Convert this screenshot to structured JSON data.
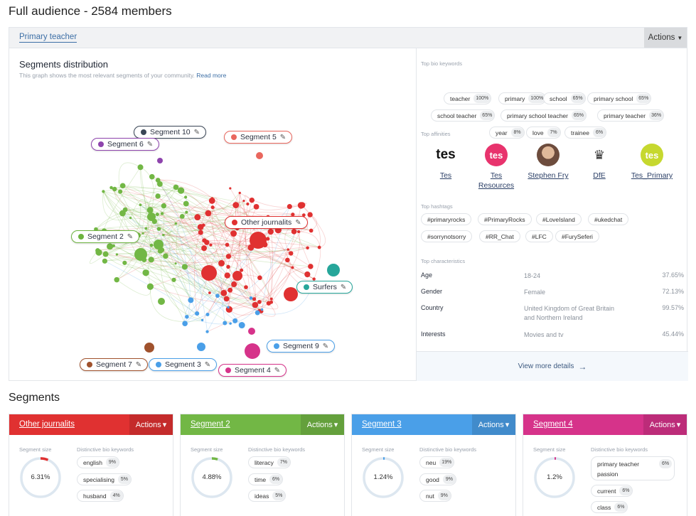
{
  "page_title": "Full audience - 2584 members",
  "header": {
    "tab_label": "Primary teacher",
    "actions_label": "Actions"
  },
  "graph": {
    "title": "Segments distribution",
    "subtitle": "This graph shows the most relevant segments of your community.",
    "read_more": "Read more",
    "labels": [
      {
        "id": "seg10",
        "text": "Segment 10",
        "color": "#3a4656"
      },
      {
        "id": "seg5",
        "text": "Segment 5",
        "color": "#e9675e"
      },
      {
        "id": "seg6",
        "text": "Segment 6",
        "color": "#8e44ad"
      },
      {
        "id": "other",
        "text": "Other journalits",
        "color": "#e03131"
      },
      {
        "id": "seg2",
        "text": "Segment 2",
        "color": "#6cb33f"
      },
      {
        "id": "surfers",
        "text": "Surfers",
        "color": "#26a69a"
      },
      {
        "id": "seg9",
        "text": "Segment 9",
        "color": "#4a9fe8"
      },
      {
        "id": "seg3",
        "text": "Segment 3",
        "color": "#4a9fe8"
      },
      {
        "id": "seg4",
        "text": "Segment 4",
        "color": "#d6338a"
      },
      {
        "id": "seg7",
        "text": "Segment 7",
        "color": "#a0522d"
      }
    ]
  },
  "side": {
    "bio_keywords_title": "Top bio keywords",
    "bio_keywords": [
      {
        "word": "teacher",
        "pct": "100%"
      },
      {
        "word": "primary",
        "pct": "100%"
      },
      {
        "word": "school",
        "pct": "65%"
      },
      {
        "word": "primary school",
        "pct": "65%"
      },
      {
        "word": "school teacher",
        "pct": "65%"
      },
      {
        "word": "primary school teacher",
        "pct": "65%"
      },
      {
        "word": "primary teacher",
        "pct": "36%"
      },
      {
        "word": "year",
        "pct": "8%"
      },
      {
        "word": "love",
        "pct": "7%"
      },
      {
        "word": "trainee",
        "pct": "6%"
      }
    ],
    "affinities_title": "Top affinities",
    "affinities": [
      {
        "name": "Tes",
        "logo_text": "tes",
        "logo_bg": "#ffffff",
        "logo_fg": "#111111"
      },
      {
        "name": "Tes Resources",
        "logo_text": "tes",
        "logo_bg": "#e8336d",
        "logo_fg": "#ffffff"
      },
      {
        "name": "Stephen Fry",
        "logo_text": "",
        "logo_bg": "#8a6a55",
        "logo_fg": "#ffffff"
      },
      {
        "name": "DfE",
        "logo_text": "♛",
        "logo_bg": "#ffffff",
        "logo_fg": "#333333"
      },
      {
        "name": "Tes_Primary",
        "logo_text": "tes",
        "logo_bg": "#c6d82f",
        "logo_fg": "#ffffff"
      }
    ],
    "hashtags_title": "Top hashtags",
    "hashtags": [
      "#primaryrocks",
      "#PrimaryRocks",
      "#LoveIsland",
      "#ukedchat",
      "#sorrynotsorry",
      "#RR_Chat",
      "#LFC",
      "#FurySeferi"
    ],
    "characteristics_title": "Top characteristics",
    "characteristics": [
      {
        "key": "Age",
        "value": "18-24",
        "pct": "37.65%"
      },
      {
        "key": "Gender",
        "value": "Female",
        "pct": "72.13%"
      },
      {
        "key": "Country",
        "value": "United Kingdom of Great Britain and Northern Ireland",
        "pct": "99.57%"
      },
      {
        "key": "Interests",
        "value": "Movies and tv",
        "pct": "45.44%"
      }
    ],
    "view_more": "View more details"
  },
  "segments_title": "Segments",
  "segment_cards": [
    {
      "name": "Other journalits",
      "color": "#e03131",
      "actions": "Actions",
      "size_label": "Segment size",
      "keywords_label": "Distinctive bio keywords",
      "size": "6.31%",
      "size_fraction": 0.0631,
      "keywords": [
        {
          "word": "english",
          "pct": "9%"
        },
        {
          "word": "specialising",
          "pct": "5%"
        },
        {
          "word": "husband",
          "pct": "4%"
        }
      ]
    },
    {
      "name": "Segment 2",
      "color": "#72b745",
      "actions": "Actions",
      "size_label": "Segment size",
      "keywords_label": "Distinctive bio keywords",
      "size": "4.88%",
      "size_fraction": 0.0488,
      "keywords": [
        {
          "word": "literacy",
          "pct": "7%"
        },
        {
          "word": "time",
          "pct": "6%"
        },
        {
          "word": "ideas",
          "pct": "5%"
        }
      ]
    },
    {
      "name": "Segment 3",
      "color": "#4a9fe8",
      "actions": "Actions",
      "size_label": "Segment size",
      "keywords_label": "Distinctive bio keywords",
      "size": "1.24%",
      "size_fraction": 0.0124,
      "keywords": [
        {
          "word": "neu",
          "pct": "19%"
        },
        {
          "word": "good",
          "pct": "9%"
        },
        {
          "word": "nut",
          "pct": "9%"
        }
      ]
    },
    {
      "name": "Segment 4",
      "color": "#d6338a",
      "actions": "Actions",
      "size_label": "Segment size",
      "keywords_label": "Distinctive bio keywords",
      "size": "1.2%",
      "size_fraction": 0.012,
      "keywords": [
        {
          "word": "primary teacher passion",
          "pct": "6%"
        },
        {
          "word": "current",
          "pct": "6%"
        },
        {
          "word": "class",
          "pct": "6%"
        }
      ]
    }
  ]
}
